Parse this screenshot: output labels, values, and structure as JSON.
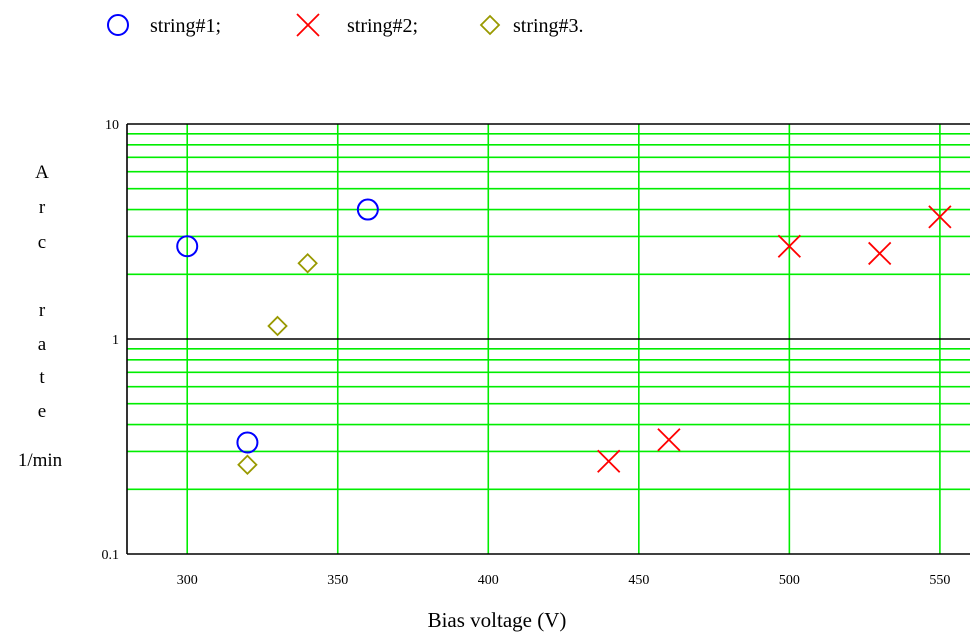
{
  "chart_data": {
    "type": "scatter",
    "title": "",
    "xlabel": "Bias voltage (V)",
    "ylabel_letters": [
      "A",
      "r",
      "c",
      "r",
      "a",
      "t",
      "e"
    ],
    "ylabel_unit": "1/min",
    "xlim": [
      280,
      560
    ],
    "ylim": [
      0.1,
      10
    ],
    "yscale": "log",
    "grid": true,
    "x_ticks": [
      "300",
      "350",
      "400",
      "450",
      "500",
      "550"
    ],
    "x_tick_values": [
      300,
      350,
      400,
      450,
      500,
      550
    ],
    "y_ticks": [
      "0.1",
      "1",
      "10"
    ],
    "y_tick_values": [
      0.1,
      1,
      10
    ],
    "legend_position": "top",
    "series": [
      {
        "name": "string#1;",
        "marker": "circle",
        "color": "#0000ff",
        "points": [
          {
            "x": 300,
            "y": 2.7
          },
          {
            "x": 320,
            "y": 0.33
          },
          {
            "x": 360,
            "y": 4.0
          }
        ]
      },
      {
        "name": "string#2;",
        "marker": "x",
        "color": "#ff0000",
        "points": [
          {
            "x": 440,
            "y": 0.27
          },
          {
            "x": 460,
            "y": 0.34
          },
          {
            "x": 500,
            "y": 2.7
          },
          {
            "x": 530,
            "y": 2.5
          },
          {
            "x": 550,
            "y": 3.7
          }
        ]
      },
      {
        "name": "string#3.",
        "marker": "diamond",
        "color": "#999900",
        "points": [
          {
            "x": 320,
            "y": 0.26
          },
          {
            "x": 330,
            "y": 1.15
          },
          {
            "x": 340,
            "y": 2.25
          }
        ]
      }
    ],
    "colors": {
      "grid": "#00ee00",
      "frame": "#000000",
      "reference_line": "#000000"
    }
  }
}
